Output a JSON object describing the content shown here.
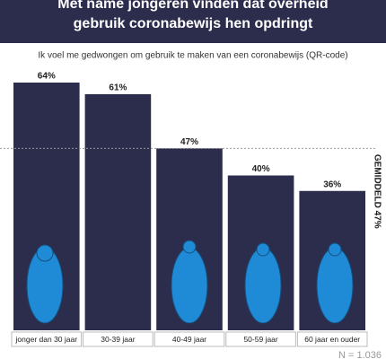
{
  "chart_data": {
    "type": "bar",
    "title": "Met name jongeren vinden dat overheid gebruik coronabewijs hen opdringt",
    "subtitle": "Ik voel me gedwongen om gebruik te maken van een coronabewijs (QR-code)",
    "categories": [
      "jonger dan 30 jaar",
      "30-39 jaar",
      "40-49 jaar",
      "50-59 jaar",
      "60 jaar en ouder"
    ],
    "values": [
      64,
      61,
      47,
      40,
      36
    ],
    "value_labels": [
      "64%",
      "61%",
      "47%",
      "40%",
      "36%"
    ],
    "color": "#2c2c4c",
    "ylim": [
      0,
      64
    ],
    "average": {
      "value": 47,
      "label": "GEMIDDELD 47%"
    },
    "note": "N = 1.036"
  }
}
